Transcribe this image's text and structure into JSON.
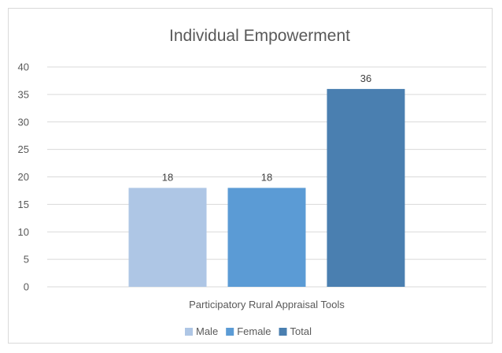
{
  "chart_data": {
    "type": "bar",
    "title": "Individual Empowerment",
    "categories": [
      "Participatory Rural Appraisal Tools"
    ],
    "series": [
      {
        "name": "Male",
        "values": [
          18
        ],
        "color": "#aec6e5"
      },
      {
        "name": "Female",
        "values": [
          18
        ],
        "color": "#5b9bd5"
      },
      {
        "name": "Total",
        "values": [
          36
        ],
        "color": "#4a7fb0"
      }
    ],
    "yticks": [
      "0",
      "5",
      "10",
      "15",
      "20",
      "25",
      "30",
      "35",
      "40"
    ],
    "ylim": [
      0,
      40
    ],
    "grid": true,
    "legend_position": "bottom",
    "data_labels": true
  }
}
